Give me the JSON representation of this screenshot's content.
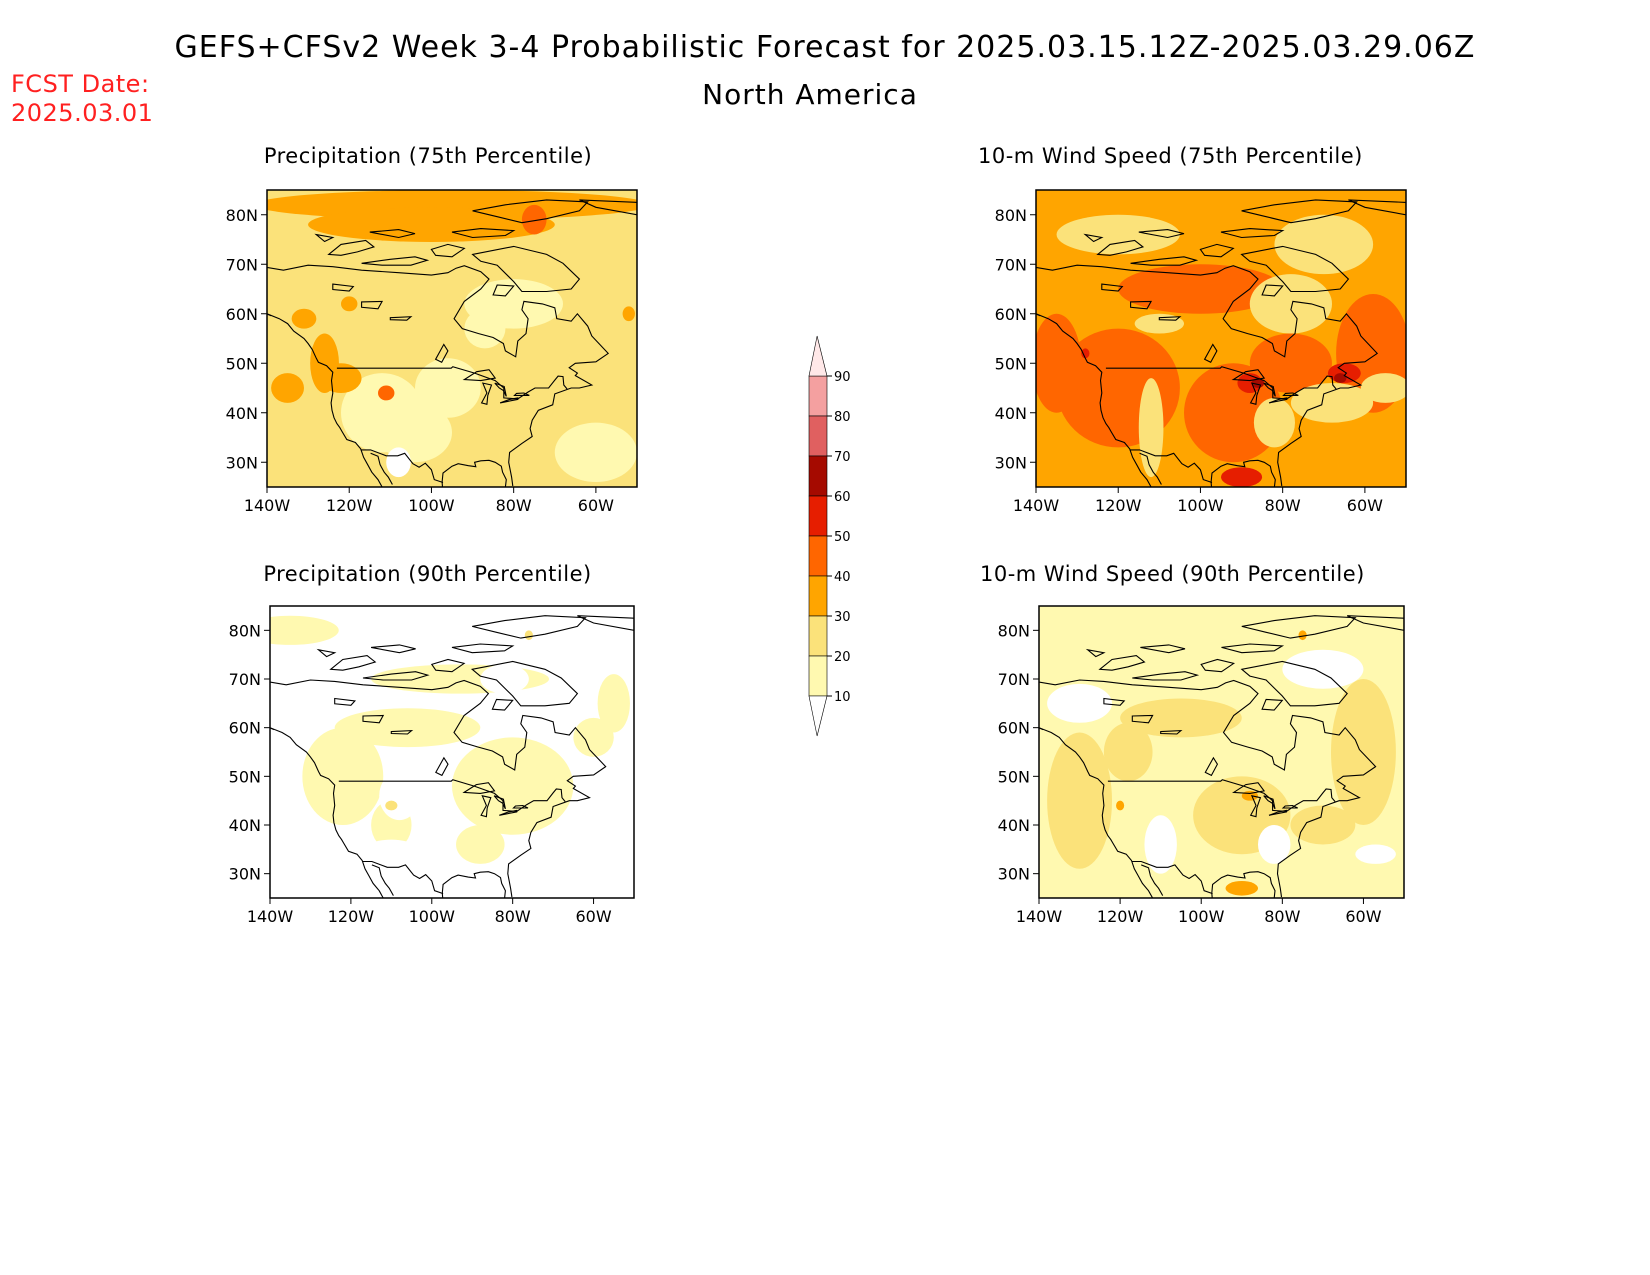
{
  "header": {
    "title": "GEFS+CFSv2 Week 3-4 Probabilistic Forecast for 2025.03.15.12Z-2025.03.29.06Z",
    "region": "North America",
    "fcst_label": "FCST Date:",
    "fcst_date": "2025.03.01"
  },
  "axes": {
    "lon_labels": [
      "140W",
      "120W",
      "100W",
      "80W",
      "60W"
    ],
    "lat_labels": [
      "80N",
      "70N",
      "60N",
      "50N",
      "40N",
      "30N"
    ]
  },
  "panels": [
    {
      "title": "Precipitation (75th Percentile)",
      "field": "precip75"
    },
    {
      "title": "10-m Wind Speed (75th Percentile)",
      "field": "wind75"
    },
    {
      "title": "Precipitation (90th Percentile)",
      "field": "precip90"
    },
    {
      "title": "10-m Wind Speed (90th Percentile)",
      "field": "wind90"
    }
  ],
  "colorbar": {
    "levels": [
      "10",
      "20",
      "30",
      "40",
      "50",
      "60",
      "70",
      "80",
      "90"
    ],
    "colors": {
      "lt10": "#ffffff",
      "c10_20": "#fff9b0",
      "c20_30": "#fbe27a",
      "c30_40": "#ffa500",
      "c40_50": "#ff6600",
      "c50_60": "#e61e00",
      "c60_70": "#a50a00",
      "c70_80": "#e06060",
      "c80_90": "#f4a0a0",
      "gt90": "#ffe8e8"
    }
  }
}
